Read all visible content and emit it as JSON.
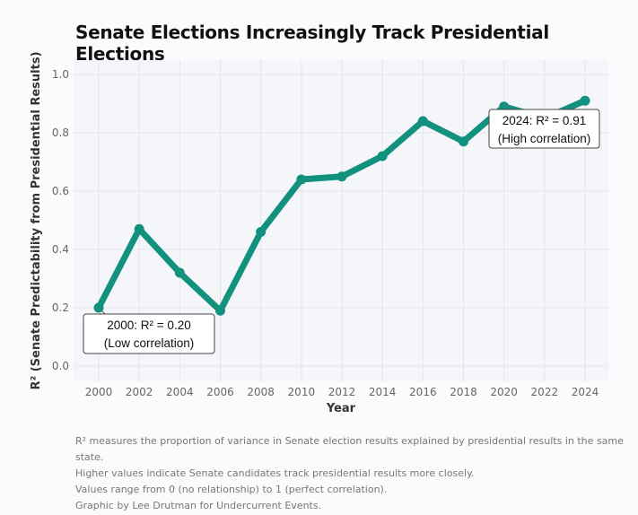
{
  "chart_data": {
    "type": "line",
    "title": "Senate Elections Increasingly Track Presidential Elections",
    "xlabel": "Year",
    "ylabel": "R² (Senate Predictability from Presidential Results)",
    "x": [
      2000,
      2002,
      2004,
      2006,
      2008,
      2010,
      2012,
      2014,
      2016,
      2018,
      2020,
      2022,
      2024
    ],
    "series": [
      {
        "name": "R²",
        "values": [
          0.2,
          0.47,
          0.32,
          0.19,
          0.46,
          0.64,
          0.65,
          0.72,
          0.84,
          0.77,
          0.89,
          0.85,
          0.91
        ]
      }
    ],
    "xticks": [
      "2000",
      "2002",
      "2004",
      "2006",
      "2008",
      "2010",
      "2012",
      "2014",
      "2016",
      "2018",
      "2020",
      "2022",
      "2024"
    ],
    "yticks": [
      "0.0",
      "0.2",
      "0.4",
      "0.6",
      "0.8",
      "1.0"
    ],
    "xlim": [
      1999,
      2025
    ],
    "ylim": [
      -0.05,
      1.05
    ],
    "grid": true,
    "color": "#13917f",
    "annotations": [
      {
        "year": 2000,
        "lines": [
          "2000: R² = 0.20",
          "(Low correlation)"
        ]
      },
      {
        "year": 2024,
        "lines": [
          "2024: R² = 0.91",
          "(High correlation)"
        ]
      }
    ]
  },
  "notes": [
    "R² measures the proportion of variance in Senate election results explained by presidential results in the same state.",
    "Higher values indicate Senate candidates track presidential results more closely.",
    "Values range from 0 (no relationship) to 1 (perfect correlation).",
    "Graphic by Lee Drutman for Undercurrent Events."
  ]
}
